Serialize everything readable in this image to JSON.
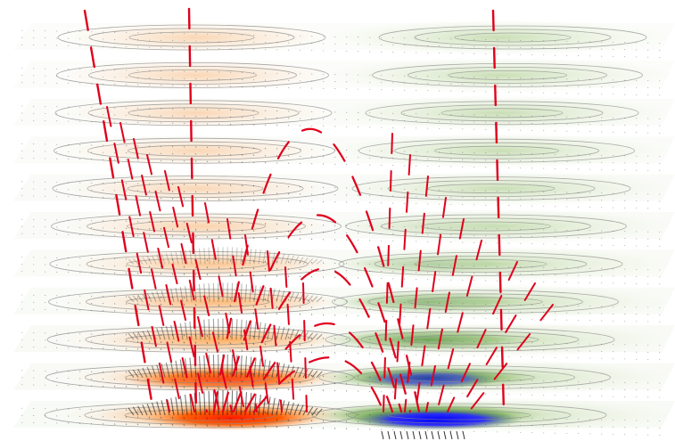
{
  "colors": {
    "background": "#ffffff",
    "left_field_faint": "#fbe3cc",
    "left_field_strong": "#ff7a00",
    "left_core": "#ff2a00",
    "right_field_faint": "#dfeccd",
    "right_field_strong": "#3f8a1e",
    "right_core": "#1414ff",
    "field_line": "#e0001c",
    "contour": "#8a8a8a",
    "vector": "#2a2a2a"
  },
  "layer_count": 11
}
